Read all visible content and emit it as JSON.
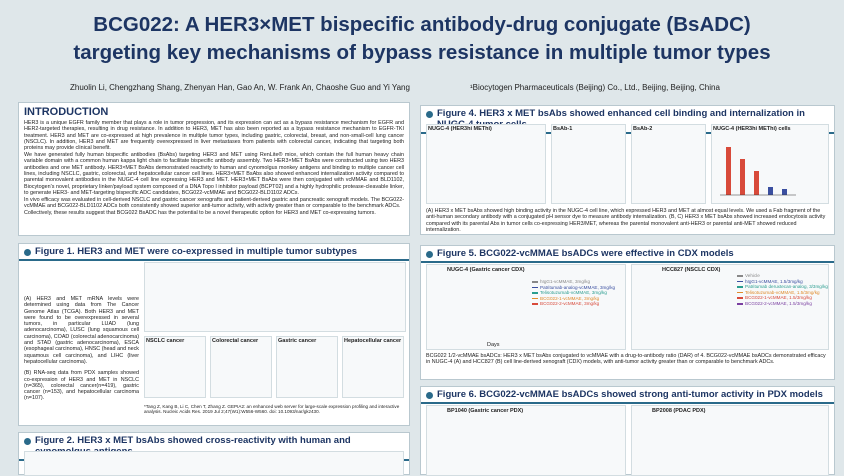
{
  "header": {
    "title_lines": [
      "BCG022: A HER3×MET bispecific antibody-drug conjugate (BsADC)",
      "targeting key mechanisms of bypass resistance in multiple tumor types"
    ],
    "authors": "Zhuolin Li, Chengzhang Shang, Zhenyan Han, Gao An, W. Frank An, Chaoshe Guo and Yi Yang",
    "affiliation": "¹Biocytogen Pharmaceuticals (Beijing) Co., Ltd., Beijing, Beijing, China"
  },
  "introduction": {
    "heading": "INTRODUCTION",
    "paragraphs": [
      "HER3 is a unique EGFR family member that plays a role in tumor progression, and its expression can act as a bypass resistance mechanism for EGFR and HER2-targeted therapies, resulting in drug resistance. In addition to HER3, MET has also been reported as a bypass resistance mechanism to EGFR-TKI treatment. HER3 and MET are co-expressed at high prevalence in multiple tumor types, including gastric, colorectal, breast, and non-small-cell lung cancer (NSCLC). In addition, HER3 and MET are frequently overexpressed in liver metastases from patients with colorectal cancer, indicating that targeting both proteins may provide clinical benefit.",
      "We have generated fully human bispecific antibodies (BsAbs) targeting HER3 and MET using RenLite® mice, which contain the full human heavy chain variable domain with a common human kappa light chain to facilitate bispecific antibody assembly. Two HER3×MET BsAbs were constructed using two HER3 antibodies and one MET antibody. HER3×MET BsAbs demonstrated reactivity to human and cynomolgus monkey antigens and binding to multiple cancer cell lines, including NSCLC, gastric, colorectal, and hepatocellular cancer cell lines. HER3×MET BsAbs also showed enhanced internalization activity compared to parental monovalent antibodies in the NUGC-4 cell line expressing HER3 and MET. HER3×MET BsAbs were then conjugated with vcMMAE and BLD1102, Biocytogen's novel, proprietary linker/payload system composed of a DNA Topo I inhibitor payload (BCPT02) and a highly hydrophilic protease-cleavable linker, to generate HER3- and MET-targeting bispecific ADC candidates, BCG022-vcMMAE and BCG022-BLD1102 ADCs.",
      "In vivo efficacy was evaluated in cell-derived NSCLC and gastric cancer xenografts and patient-derived gastric and pancreatic xenograft models. The BCG022-vcMMAE and BCG022-BLD1102 ADCs both consistently showed superior anti-tumor activity, with activity greater than or comparable to the benchmark ADCs.",
      "Collectively, these results suggest that BCG022 BsADC has the potential to be a novel therapeutic option for HER3 and MET co-expressing tumors."
    ]
  },
  "figure1": {
    "heading": "Figure 1. HER3 and MET were co-expressed in multiple tumor subtypes",
    "paragraphs": [
      "(A) HER3 and MET mRNA levels were determined using data from The Cancer Genome Atlas (TCGA). Both HER3 and MET were found to be overexpressed in several tumors, in particular LUAD (lung adenocarcinoma), LUSC (lung squamous cell carcinoma), COAD (colorectal adenocarcinoma) and STAD (gastric adenocarcinoma), ESCA (esophageal carcinoma), HNSC (head and neck squamous cell carcinoma), and LIHC (liver hepatocellular carcinoma).",
      "(B) RNA-seq data from PDX samples showed co-expression of HER3 and MET in NSCLC (n=365), colorectal cancer(n=419), gastric cancer (n=153), and hepatocellular carcinoma (n=107)."
    ],
    "reference": "*Tang Z, Kang B, Li C, Chen T, Zhang Z. GEPIA2: an enhanced web server for large-scale expression profiling and interactive analysis. Nucleic Acids Res. 2019 Jul 2;47(W1):W556-W560. doi: 10.1093/nar/gkz430.",
    "panel_titles": [
      "NSCLC cancer",
      "Colorectal cancer",
      "Gastric cancer",
      "Hepatocellular cancer"
    ]
  },
  "figure2": {
    "heading": "Figure 2. HER3 x MET bsAbs showed cross-reactivity with human and cynomolgus antigens"
  },
  "figure4": {
    "heading": "Figure 4. HER3 x MET bsAbs showed enhanced cell binding and internalization in NUGC-4 tumor cells",
    "panel_titles": [
      "NUGC-4 (HER3hi METhi)",
      "BsAb-1",
      "BsAb-2",
      "NUGC-4 (HER3hi METhi) cells"
    ],
    "caption": "(A) HER3 x MET bsAbs showed high binding activity in the NUGC-4 cell line, which expressed HER3 and MET at almost equal levels. We used a Fab fragment of the anti-human secondary antibody with a conjugated pH sensor dye to measure antibody internalization. (B, C) HER3 x MET bsAbs showed increased endocytosis activity compared with its parental Abs in tumor cells co-expressing HER3/MET, whereas the parental monovalent anti-HER3 or parental anti-MET showed reduced internalization."
  },
  "figure5": {
    "heading": "Figure 5. BCG022-vcMMAE bsADCs were effective in CDX models",
    "panel_titles": [
      "NUGC-4 (Gastric cancer CDX)",
      "HCC827 (NSCLC CDX)"
    ],
    "legends": [
      [
        "hIgG1-vcMMAE, 3mg/kg",
        "Patritumab-analog-vcMMAE, 3mg/kg",
        "Telisotuzumab-vcMMAE, 3mg/kg",
        "BCG022-1-vcMMAE, 3mg/kg",
        "BCG022-2-vcMMAE, 3mg/kg"
      ],
      [
        "Vehicle",
        "hIgG1-vcMMAE, 1.5/3mg/kg",
        "Patritumab deruxtecan-analog, 3/3mg/kg",
        "Telisotuzumab-vcMMAE, 1.5/3mg/kg",
        "BCG022-1-vcMMAE, 1.5/3mg/kg",
        "BCG022-2-vcMMAE, 1.5/3mg/kg"
      ]
    ],
    "axis_label": "Days",
    "caption": "BCG022 1/2-vcMMAE bsADCs: HER3 x MET bsAbs conjugated to vcMMAE with a drug-to-antibody ratio (DAR) of 4. BCG022-vcMMAE bsADCs demonstrated efficacy in NUGC-4 (A) and HCC827 (B) cell line-derived xenograft (CDX) models, with anti-tumor activity greater than or comparable to benchmark ADCs."
  },
  "figure6": {
    "heading": "Figure 6. BCG022-vcMMAE bsADCs showed strong anti-tumor activity in PDX models",
    "panel_titles": [
      "BP1040 (Gastric cancer PDX)",
      "BP2008 (PDAC PDX)"
    ]
  }
}
